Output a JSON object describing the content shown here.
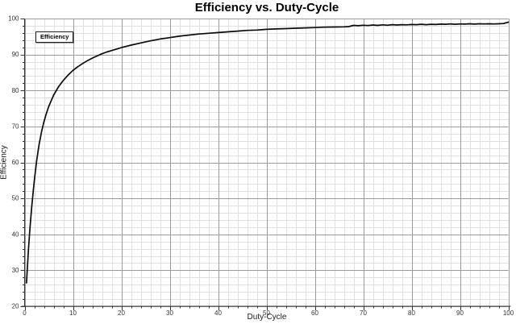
{
  "window": {
    "description": "Line chart of converter efficiency versus duty-cycle on a fine gray grid"
  },
  "legend": {
    "label": "Efficiency",
    "position": "top-left"
  },
  "colors": {
    "background": "#ffffff",
    "curve": "#0a0a0a",
    "grid_minor": "#e0e0e0",
    "grid_major": "#9c9c9c",
    "axis": "#333333",
    "tick_label": "#333333",
    "title_text": "#000000"
  },
  "chart_data": {
    "type": "line",
    "title": "Efficiency vs. Duty-Cycle",
    "xlabel": "Duty-Cycle",
    "ylabel": "Efficiency",
    "xlim": [
      0,
      100
    ],
    "ylim": [
      20,
      100
    ],
    "xticks": [
      0,
      10,
      20,
      30,
      40,
      50,
      60,
      70,
      80,
      90,
      100
    ],
    "yticks": [
      20,
      30,
      40,
      50,
      60,
      70,
      80,
      90,
      100
    ],
    "minor_step_x": 2,
    "minor_step_y": 2,
    "grid": true,
    "legend_position": "top-left",
    "series": [
      {
        "name": "Efficiency",
        "color": "#0a0a0a",
        "points": [
          [
            0.4,
            26.5
          ],
          [
            0.5,
            29.0
          ],
          [
            0.6,
            31.2
          ],
          [
            0.8,
            35.8
          ],
          [
            1,
            39.7
          ],
          [
            1.2,
            43.2
          ],
          [
            1.5,
            48.0
          ],
          [
            1.8,
            52.2
          ],
          [
            2.1,
            56.0
          ],
          [
            2.5,
            60.5
          ],
          [
            3,
            65.0
          ],
          [
            3.5,
            68.5
          ],
          [
            4,
            71.3
          ],
          [
            4.5,
            73.6
          ],
          [
            5,
            75.6
          ],
          [
            6,
            78.7
          ],
          [
            7,
            81.0
          ],
          [
            8,
            82.8
          ],
          [
            9,
            84.3
          ],
          [
            10,
            85.6
          ],
          [
            11,
            86.6
          ],
          [
            12,
            87.5
          ],
          [
            13,
            88.3
          ],
          [
            14,
            89.0
          ],
          [
            15,
            89.6
          ],
          [
            16,
            90.2
          ],
          [
            17,
            90.7
          ],
          [
            18,
            91.1
          ],
          [
            19,
            91.5
          ],
          [
            20,
            91.9
          ],
          [
            22,
            92.6
          ],
          [
            24,
            93.2
          ],
          [
            26,
            93.8
          ],
          [
            28,
            94.3
          ],
          [
            30,
            94.7
          ],
          [
            32,
            95.1
          ],
          [
            34,
            95.4
          ],
          [
            36,
            95.7
          ],
          [
            38,
            95.9
          ],
          [
            40,
            96.1
          ],
          [
            42,
            96.3
          ],
          [
            44,
            96.5
          ],
          [
            46,
            96.7
          ],
          [
            48,
            96.8
          ],
          [
            50,
            97.0
          ],
          [
            52,
            97.1
          ],
          [
            54,
            97.2
          ],
          [
            56,
            97.3
          ],
          [
            58,
            97.4
          ],
          [
            60,
            97.5
          ],
          [
            62,
            97.6
          ],
          [
            64,
            97.65
          ],
          [
            66,
            97.7
          ],
          [
            67,
            97.75
          ],
          [
            68,
            98.1
          ],
          [
            69,
            98.0
          ],
          [
            70,
            98.15
          ],
          [
            71,
            98.05
          ],
          [
            72,
            98.2
          ],
          [
            73,
            98.1
          ],
          [
            74,
            98.25
          ],
          [
            75,
            98.15
          ],
          [
            76,
            98.3
          ],
          [
            77,
            98.2
          ],
          [
            78,
            98.3
          ],
          [
            79,
            98.25
          ],
          [
            80,
            98.35
          ],
          [
            81,
            98.3
          ],
          [
            82,
            98.4
          ],
          [
            83,
            98.3
          ],
          [
            84,
            98.4
          ],
          [
            85,
            98.35
          ],
          [
            86,
            98.45
          ],
          [
            87,
            98.4
          ],
          [
            88,
            98.5
          ],
          [
            89,
            98.4
          ],
          [
            90,
            98.5
          ],
          [
            91,
            98.45
          ],
          [
            92,
            98.55
          ],
          [
            93,
            98.45
          ],
          [
            94,
            98.55
          ],
          [
            95,
            98.5
          ],
          [
            96,
            98.55
          ],
          [
            97,
            98.5
          ],
          [
            98,
            98.55
          ],
          [
            99,
            98.6
          ],
          [
            100,
            99.0
          ]
        ]
      }
    ]
  }
}
